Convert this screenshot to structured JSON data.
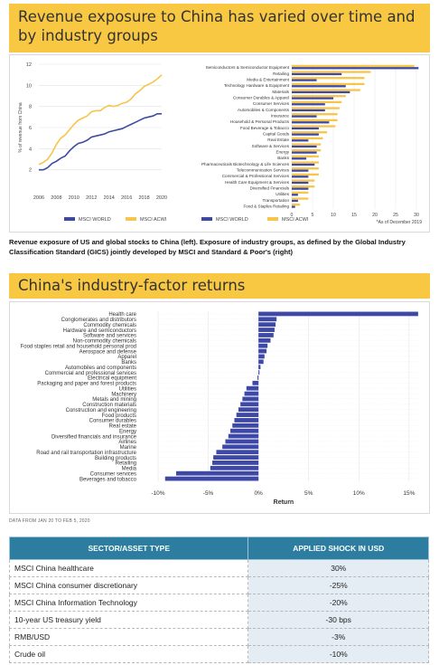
{
  "banner1": {
    "title": "Revenue exposure to China has varied over time and by industry groups"
  },
  "banner2": {
    "title": "China's industry-factor returns"
  },
  "caption": "Revenue exposure of US and global stocks to China (left). Exposure of industry groups, as defined by the Global Industry Classification Standard (GICS) jointly developed by MSCI and Standard & Poor's (right)",
  "source": "DATA FROM JAN 20 TO FEB 5, 2020",
  "colors": {
    "world": "#3f4a9f",
    "acwi": "#f6c54a",
    "negbar": "#3e48a6",
    "header": "#2c7da0",
    "banner": "#f8c842"
  },
  "chart_data": [
    {
      "type": "line",
      "ylabel": "% of revenue from China",
      "xlabel": "",
      "xlim": [
        2006,
        2020
      ],
      "ylim": [
        0,
        12
      ],
      "xticks": [
        "2006",
        "2008",
        "2010",
        "2012",
        "2014",
        "2016",
        "2018",
        "2020"
      ],
      "yticks": [
        "2",
        "4",
        "6",
        "8",
        "10",
        "12"
      ],
      "series": [
        {
          "name": "MSCI WORLD",
          "x": [
            2006,
            2006.5,
            2007,
            2007.5,
            2008,
            2008.5,
            2009,
            2009.5,
            2010,
            2010.5,
            2011,
            2011.5,
            2012,
            2012.5,
            2013,
            2013.5,
            2014,
            2014.5,
            2015,
            2015.5,
            2016,
            2016.5,
            2017,
            2017.5,
            2018,
            2018.5,
            2019,
            2019.5,
            2020
          ],
          "values": [
            2.0,
            2.0,
            2.2,
            2.6,
            2.8,
            3.1,
            3.3,
            3.8,
            4.2,
            4.5,
            4.6,
            4.8,
            5.1,
            5.2,
            5.3,
            5.4,
            5.6,
            5.7,
            5.8,
            5.9,
            6.1,
            6.3,
            6.5,
            6.7,
            6.9,
            7.0,
            7.1,
            7.3,
            7.3
          ]
        },
        {
          "name": "MSCI ACWI",
          "x": [
            2006,
            2006.5,
            2007,
            2007.5,
            2008,
            2008.5,
            2009,
            2009.5,
            2010,
            2010.5,
            2011,
            2011.5,
            2012,
            2012.5,
            2013,
            2013.5,
            2014,
            2014.5,
            2015,
            2015.5,
            2016,
            2016.5,
            2017,
            2017.5,
            2018,
            2018.5,
            2019,
            2019.5,
            2020
          ],
          "values": [
            2.5,
            2.7,
            3.0,
            3.6,
            4.4,
            5.0,
            5.3,
            5.8,
            6.3,
            6.7,
            6.9,
            7.1,
            7.5,
            7.6,
            7.6,
            7.9,
            8.1,
            8.0,
            8.1,
            8.3,
            8.4,
            8.7,
            9.2,
            9.5,
            9.9,
            10.1,
            10.3,
            10.6,
            11.0
          ]
        }
      ],
      "legend": "bottom"
    },
    {
      "type": "bar",
      "orientation": "horizontal",
      "note": "*As of December 2019",
      "xlim": [
        0,
        30
      ],
      "xticks": [
        "0",
        "5",
        "10",
        "15",
        "20",
        "25",
        "30"
      ],
      "categories": [
        "Semiconductors & Semiconductor Equipment",
        "Retailing",
        "Media & Entertainment",
        "Technology Hardware & Equipment",
        "Materials",
        "Consumer Durables & Apparel",
        "Consumer Services",
        "Automobiles & Components",
        "Insurance",
        "Household & Personal Products",
        "Food Beverage & Tobacco",
        "Capital Goods",
        "Real Estate",
        "Software & Services",
        "Energy",
        "Banks",
        "Pharmaceuticals Biotechnology & Life Sciences",
        "Telecommunication Services",
        "Commercial & Professional Services",
        "Health Care Equipment & Services",
        "Diversified Financials",
        "Utilities",
        "Transportation",
        "Food & Staples Retailing"
      ],
      "series": [
        {
          "name": "MSCI WORLD",
          "values": [
            30.5,
            12,
            6,
            13,
            14,
            10,
            8,
            8,
            6,
            9,
            6.5,
            6.5,
            4,
            6,
            6,
            3.5,
            5.5,
            4,
            4,
            4,
            4,
            1.5,
            1.5,
            0.8
          ]
        },
        {
          "name": "MSCI ACWI",
          "values": [
            29.5,
            19,
            17.5,
            17.5,
            16.5,
            13,
            12,
            11.5,
            11,
            11,
            10.5,
            8.5,
            7.5,
            7,
            7,
            6.5,
            6.5,
            6.5,
            6.5,
            5.5,
            5.5,
            4,
            4,
            2
          ]
        }
      ],
      "legend": "bottom"
    },
    {
      "type": "bar",
      "orientation": "horizontal",
      "xlabel": "Return",
      "xlim": [
        -10,
        16
      ],
      "xticks": [
        "-10%",
        "-5%",
        "0%",
        "5%",
        "10%",
        "15%"
      ],
      "categories": [
        "Health care",
        "Conglomerates and distributors",
        "Commodity chemicals",
        "Hardware and semiconductors",
        "Software and services",
        "Non-commodity chemicals",
        "Food staples retail and household personal prod",
        "Aerospace and defense",
        "Apparel",
        "Banks",
        "Automobiles and components",
        "Commercial and professional services",
        "Electrical equipment",
        "Packaging and paper and forest products",
        "Utilities",
        "Machinery",
        "Metals and mining",
        "Construction materials",
        "Construction and engineering",
        "Food products",
        "Consumer durables",
        "Real estate",
        "Energy",
        "Diversified financials and insurance",
        "Airlines",
        "Marine",
        "Road and rail transportation infrastructure",
        "Building products",
        "Retailing",
        "Media",
        "Consumer services",
        "Beverages and tobacco"
      ],
      "values": [
        15.9,
        1.8,
        1.7,
        1.6,
        1.5,
        1.2,
        0.9,
        0.8,
        0.6,
        0.5,
        0.2,
        0.1,
        -0.1,
        -0.6,
        -1.2,
        -1.4,
        -1.6,
        -1.8,
        -2.0,
        -2.2,
        -2.4,
        -2.6,
        -2.8,
        -3.0,
        -3.3,
        -3.6,
        -4.2,
        -4.5,
        -4.6,
        -4.8,
        -8.2,
        -9.3
      ]
    }
  ],
  "table": {
    "headers": [
      "SECTOR/ASSET TYPE",
      "APPLIED SHOCK IN USD"
    ],
    "rows": [
      [
        "MSCI China healthcare",
        "30%"
      ],
      [
        "MSCI China consumer discretionary",
        "-25%"
      ],
      [
        "MSCI China Information Technology",
        "-20%"
      ],
      [
        "10-year US treasury yield",
        "-30 bps"
      ],
      [
        "RMB/USD",
        "-3%"
      ],
      [
        "Crude oil",
        "-10%"
      ]
    ]
  }
}
